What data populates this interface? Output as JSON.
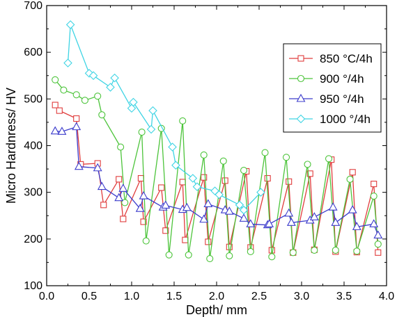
{
  "chart_data": {
    "type": "line",
    "xlabel": "Depth/ mm",
    "ylabel": "Micro Hardnress/ HV",
    "xlim": [
      0.0,
      4.0
    ],
    "ylim": [
      100,
      700
    ],
    "x_ticks": [
      "0.0",
      "0.5",
      "1.0",
      "1.5",
      "2.0",
      "2.5",
      "3.0",
      "3.5",
      "4.0"
    ],
    "y_ticks": [
      "100",
      "200",
      "300",
      "400",
      "500",
      "600",
      "700"
    ],
    "legend_position": "top-right",
    "grid": false,
    "series": [
      {
        "name": "850 °C/4h",
        "color": "#e03c3c",
        "marker": "square",
        "points": [
          [
            0.1,
            487
          ],
          [
            0.15,
            475
          ],
          [
            0.35,
            458
          ],
          [
            0.4,
            360
          ],
          [
            0.6,
            362
          ],
          [
            0.67,
            273
          ],
          [
            0.85,
            328
          ],
          [
            0.9,
            243
          ],
          [
            1.11,
            330
          ],
          [
            1.14,
            237
          ],
          [
            1.35,
            310
          ],
          [
            1.4,
            218
          ],
          [
            1.6,
            322
          ],
          [
            1.63,
            198
          ],
          [
            1.85,
            332
          ],
          [
            1.9,
            194
          ],
          [
            2.1,
            325
          ],
          [
            2.15,
            183
          ],
          [
            2.35,
            345
          ],
          [
            2.4,
            182
          ],
          [
            2.6,
            330
          ],
          [
            2.65,
            176
          ],
          [
            2.85,
            323
          ],
          [
            2.9,
            171
          ],
          [
            3.1,
            340
          ],
          [
            3.15,
            177
          ],
          [
            3.35,
            370
          ],
          [
            3.4,
            173
          ],
          [
            3.6,
            343
          ],
          [
            3.65,
            172
          ],
          [
            3.85,
            318
          ],
          [
            3.9,
            171
          ]
        ]
      },
      {
        "name": "900 °/4h",
        "color": "#4cc43a",
        "marker": "circle",
        "points": [
          [
            0.1,
            541
          ],
          [
            0.2,
            519
          ],
          [
            0.35,
            509
          ],
          [
            0.45,
            497
          ],
          [
            0.6,
            506
          ],
          [
            0.65,
            466
          ],
          [
            0.87,
            397
          ],
          [
            0.92,
            278
          ],
          [
            1.12,
            429
          ],
          [
            1.17,
            196
          ],
          [
            1.35,
            437
          ],
          [
            1.44,
            166
          ],
          [
            1.6,
            453
          ],
          [
            1.67,
            166
          ],
          [
            1.85,
            380
          ],
          [
            1.92,
            158
          ],
          [
            2.08,
            367
          ],
          [
            2.15,
            164
          ],
          [
            2.32,
            347
          ],
          [
            2.4,
            173
          ],
          [
            2.57,
            385
          ],
          [
            2.65,
            162
          ],
          [
            2.82,
            375
          ],
          [
            2.9,
            171
          ],
          [
            3.07,
            360
          ],
          [
            3.15,
            176
          ],
          [
            3.32,
            372
          ],
          [
            3.4,
            176
          ],
          [
            3.57,
            328
          ],
          [
            3.65,
            174
          ],
          [
            3.85,
            292
          ],
          [
            3.9,
            189
          ]
        ]
      },
      {
        "name": "950 °/4h",
        "color": "#3c3ccc",
        "marker": "triangle",
        "points": [
          [
            0.1,
            431
          ],
          [
            0.18,
            430
          ],
          [
            0.35,
            440
          ],
          [
            0.38,
            355
          ],
          [
            0.6,
            352
          ],
          [
            0.65,
            312
          ],
          [
            0.85,
            288
          ],
          [
            0.9,
            308
          ],
          [
            1.1,
            265
          ],
          [
            1.14,
            292
          ],
          [
            1.37,
            268
          ],
          [
            1.4,
            272
          ],
          [
            1.6,
            263
          ],
          [
            1.65,
            267
          ],
          [
            1.85,
            242
          ],
          [
            1.9,
            275
          ],
          [
            2.1,
            262
          ],
          [
            2.15,
            259
          ],
          [
            2.32,
            244
          ],
          [
            2.4,
            232
          ],
          [
            2.6,
            230
          ],
          [
            2.62,
            232
          ],
          [
            2.85,
            255
          ],
          [
            2.88,
            235
          ],
          [
            3.1,
            240
          ],
          [
            3.15,
            247
          ],
          [
            3.37,
            268
          ],
          [
            3.4,
            235
          ],
          [
            3.6,
            262
          ],
          [
            3.65,
            226
          ],
          [
            3.85,
            232
          ],
          [
            3.9,
            208
          ]
        ]
      },
      {
        "name": "1000 °/4h",
        "color": "#3ed4e4",
        "marker": "diamond",
        "points": [
          [
            0.25,
            577
          ],
          [
            0.28,
            659
          ],
          [
            0.5,
            555
          ],
          [
            0.55,
            550
          ],
          [
            0.75,
            525
          ],
          [
            0.8,
            545
          ],
          [
            1.0,
            480
          ],
          [
            1.02,
            493
          ],
          [
            1.23,
            435
          ],
          [
            1.25,
            475
          ],
          [
            1.48,
            397
          ],
          [
            1.52,
            358
          ],
          [
            1.72,
            330
          ],
          [
            1.77,
            312
          ],
          [
            1.98,
            303
          ],
          [
            2.03,
            295
          ],
          [
            2.27,
            273
          ],
          [
            2.32,
            262
          ],
          [
            2.52,
            300
          ]
        ]
      }
    ]
  }
}
